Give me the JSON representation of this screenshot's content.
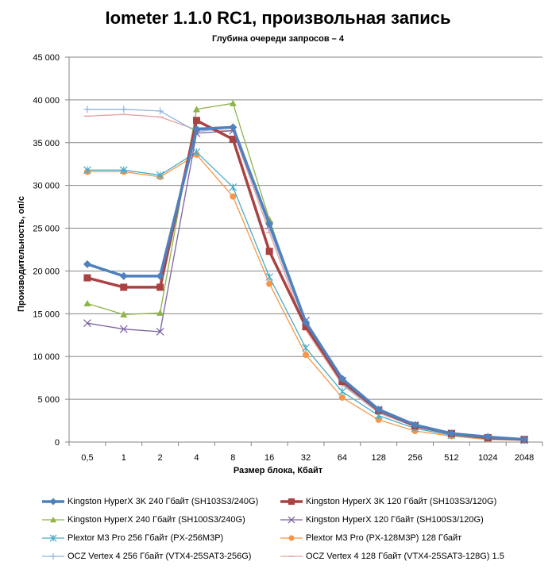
{
  "chart_data": {
    "type": "line",
    "title": "Iometer 1.1.0 RC1, произвольная запись",
    "subtitle": "Глубина очереди запросов – 4",
    "xlabel": "Размер блока, Кбайт",
    "ylabel": "Производительность, оп/с",
    "ylim": [
      0,
      45000
    ],
    "yticks": [
      "0",
      "5 000",
      "10 000",
      "15 000",
      "20 000",
      "25 000",
      "30 000",
      "35 000",
      "40 000",
      "45 000"
    ],
    "categories": [
      "0,5",
      "1",
      "2",
      "4",
      "8",
      "16",
      "32",
      "64",
      "128",
      "256",
      "512",
      "1024",
      "2048"
    ],
    "grid": true,
    "legend_position": "bottom",
    "series": [
      {
        "name": "Kingston HyperX 3K 240 Гбайт (SH103S3/240G)",
        "color": "#4f81bd",
        "marker": "diamond",
        "width": 3.5,
        "values": [
          20800,
          19400,
          19400,
          36600,
          36800,
          25500,
          14000,
          7400,
          3800,
          2000,
          1000,
          600,
          300
        ]
      },
      {
        "name": "Kingston HyperX 3K 120 Гбайт (SH103S3/120G)",
        "color": "#a94343",
        "marker": "square",
        "width": 3.5,
        "values": [
          19200,
          18100,
          18100,
          37600,
          35400,
          22300,
          13500,
          7100,
          3700,
          1900,
          1000,
          500,
          300
        ]
      },
      {
        "name": "Kingston HyperX 240 Гбайт  (SH100S3/240G)",
        "color": "#8eb34a",
        "marker": "triangle",
        "width": 1.3,
        "values": [
          16200,
          14900,
          15100,
          38900,
          39600,
          26000,
          13800,
          7000,
          3600,
          1900,
          900,
          500,
          300
        ]
      },
      {
        "name": "Kingston HyperX 120 Гбайт (SH100S3/120G)",
        "color": "#7b62a0",
        "marker": "x",
        "width": 1.3,
        "values": [
          13900,
          13200,
          12900,
          36100,
          36400,
          25300,
          14200,
          7200,
          3800,
          2000,
          1000,
          500,
          300
        ]
      },
      {
        "name": "Plextor M3 Pro 256 Гбайт (PX-256M3P)",
        "color": "#4bacc6",
        "marker": "star",
        "width": 1.3,
        "values": [
          31800,
          31800,
          31200,
          33900,
          29800,
          19300,
          11000,
          5900,
          3100,
          1600,
          800,
          400,
          200
        ]
      },
      {
        "name": "Plextor M3 Pro (PX-128M3P) 128 Гбайт",
        "color": "#f79646",
        "marker": "circle",
        "width": 1.3,
        "values": [
          31600,
          31600,
          31000,
          33600,
          28700,
          18500,
          10200,
          5200,
          2600,
          1300,
          700,
          300,
          200
        ]
      },
      {
        "name": "OCZ Vertex  4 256 Гбайт (VTX4-25SAT3-256G)",
        "color": "#8db3e2",
        "marker": "plus",
        "width": 1.3,
        "values": [
          38900,
          38900,
          38700,
          36300,
          36800,
          25000,
          13600,
          6800,
          3500,
          1800,
          900,
          500,
          300
        ]
      },
      {
        "name": "OCZ Vertex  4 128 Гбайт (VTX4-25SAT3-128G)  1.5",
        "color": "#e6a2a0",
        "marker": "dash",
        "width": 1.3,
        "values": [
          38100,
          38300,
          38000,
          36500,
          36400,
          24500,
          13100,
          6700,
          3400,
          1800,
          900,
          500,
          300
        ]
      }
    ]
  }
}
